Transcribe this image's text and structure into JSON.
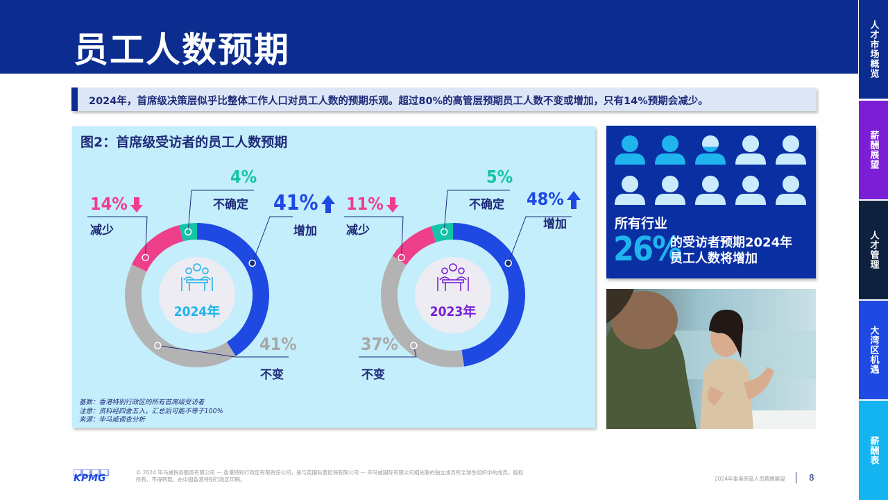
{
  "page_title": "员工人数预期",
  "sidetabs": [
    {
      "label": "人才市场概览",
      "color": "#0c2d8f"
    },
    {
      "label": "薪酬展望",
      "color": "#7a1fd6"
    },
    {
      "label": "人才管理",
      "color": "#0e2240"
    },
    {
      "label": "大湾区机遇",
      "color": "#1e49e2"
    },
    {
      "label": "薪酬表",
      "color": "#14b4f0"
    }
  ],
  "summary": "2024年，首席级决策层似乎比整体工作人口对员工人数的预期乐观。超过80%的高管层预期员工人数不变或增加，只有14%预期会减少。",
  "figure": {
    "title": "图2：首席级受访者的员工人数预期",
    "notes": [
      "基数：香港特别行政区的所有首席级受访者",
      "注意：资料经四舍五入，汇总后可能不等于100%",
      "来源：毕马威调查分析"
    ]
  },
  "chart_data": [
    {
      "type": "pie",
      "center_label": "2024年",
      "categories": [
        "增加",
        "不变",
        "减少",
        "不确定"
      ],
      "values": [
        41,
        41,
        14,
        4
      ],
      "labels": [
        "41%",
        "41%",
        "14%",
        "4%"
      ],
      "colors": [
        "#1e49e2",
        "#b3b3b3",
        "#ef3e8a",
        "#14c3a8"
      ]
    },
    {
      "type": "pie",
      "center_label": "2023年",
      "categories": [
        "增加",
        "不变",
        "减少",
        "不确定"
      ],
      "values": [
        48,
        37,
        11,
        5
      ],
      "labels": [
        "48%",
        "37%",
        "11%",
        "5%"
      ],
      "colors": [
        "#1e49e2",
        "#b3b3b3",
        "#ef3e8a",
        "#14c3a8"
      ]
    }
  ],
  "info": {
    "line1": "所有行业",
    "big": "26%",
    "text_line1": "的受访者预期2024年",
    "text_line2": "员工人数将增加",
    "people_total": 10,
    "people_highlighted": 2.6
  },
  "footer": {
    "logo": "KPMG",
    "copyright_line1": "© 2024 毕马威税务服务有限公司 — 香港特别行政区有限责任公司，是与英国私营担保有限公司 — 毕马威国际有限公司相关联的独立成员所全球性组织中的成员。版权",
    "copyright_line2": "所有，不得转载。在中国香港特别行政区印刷。",
    "doc_title": "2024年香港高管人员薪酬展望",
    "page_number": "8"
  }
}
